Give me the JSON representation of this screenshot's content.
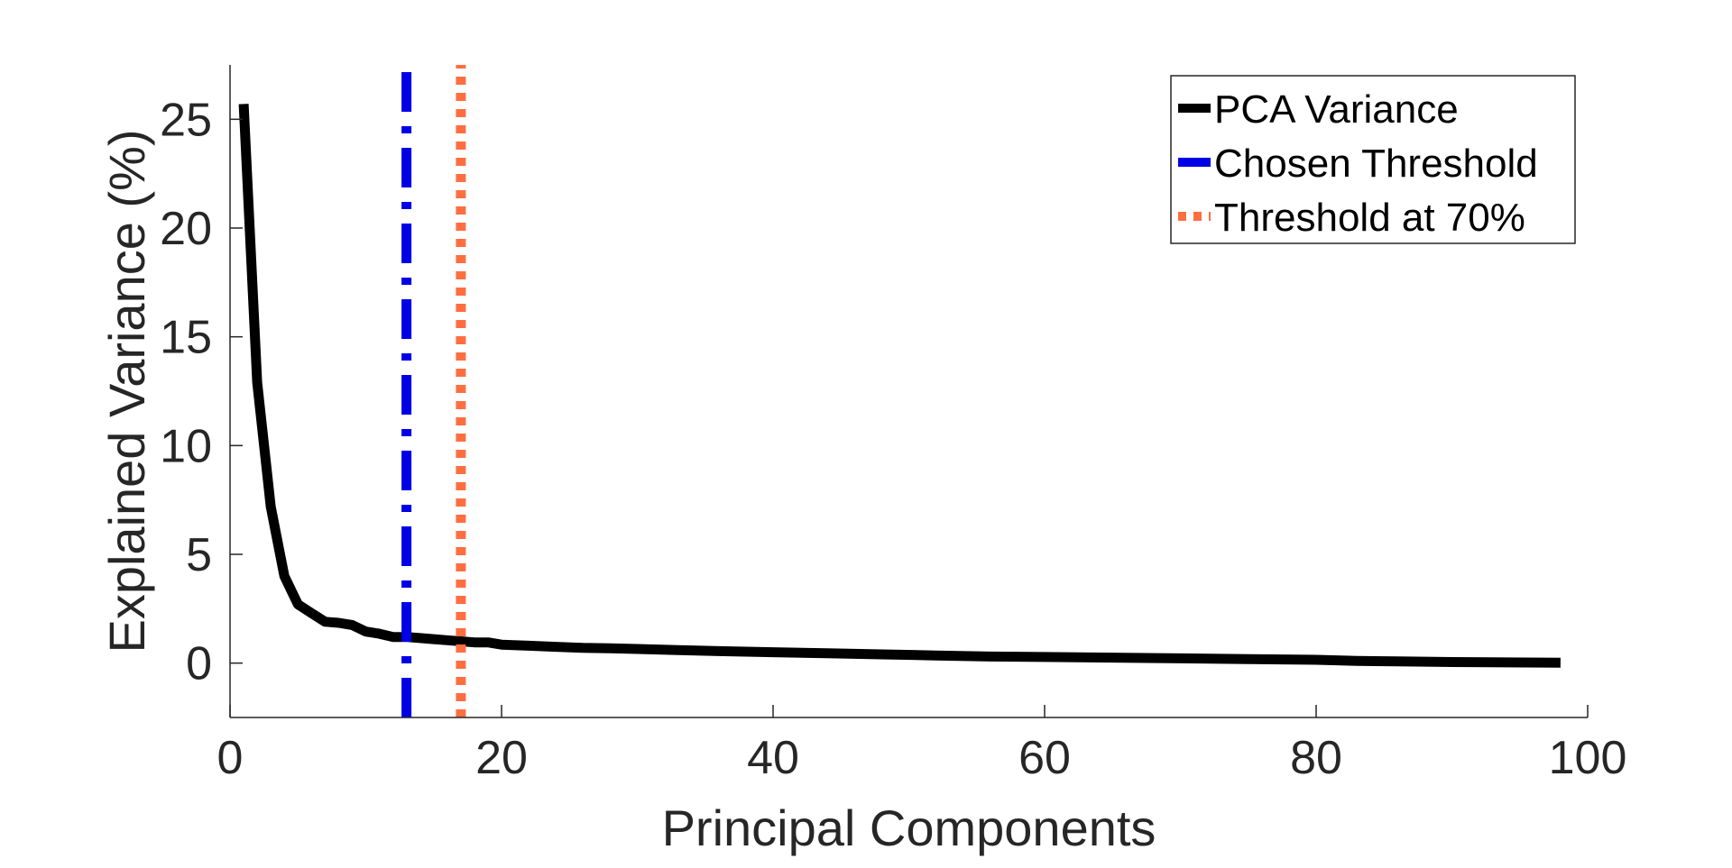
{
  "chart_data": {
    "type": "line",
    "title": "",
    "xlabel": "Principal Components",
    "ylabel": "Explained Variance (%)",
    "xlim": [
      0,
      100
    ],
    "ylim": [
      -2.5,
      27.5
    ],
    "xticks": [
      0,
      20,
      40,
      60,
      80,
      100
    ],
    "yticks": [
      0,
      5,
      10,
      15,
      20,
      25
    ],
    "grid": false,
    "legend_position": "top-right",
    "series": [
      {
        "name": "PCA Variance",
        "color": "#000000",
        "style": "solid",
        "x": [
          1,
          2,
          3,
          4,
          5,
          6,
          7,
          8,
          9,
          10,
          11,
          12,
          13,
          14,
          15,
          16,
          17,
          18,
          19,
          20,
          22,
          24,
          26,
          28,
          30,
          33,
          36,
          40,
          44,
          48,
          52,
          56,
          60,
          65,
          70,
          75,
          80,
          83,
          86,
          90,
          94,
          98
        ],
        "y": [
          25.7,
          12.9,
          7.2,
          4.0,
          2.7,
          2.3,
          1.9,
          1.85,
          1.75,
          1.45,
          1.35,
          1.2,
          1.2,
          1.15,
          1.1,
          1.05,
          1.0,
          0.95,
          0.95,
          0.85,
          0.8,
          0.75,
          0.7,
          0.68,
          0.65,
          0.6,
          0.55,
          0.5,
          0.45,
          0.4,
          0.35,
          0.3,
          0.28,
          0.25,
          0.22,
          0.18,
          0.15,
          0.1,
          0.08,
          0.05,
          0.03,
          0.02
        ]
      },
      {
        "name": "Chosen Threshold",
        "color": "#0000e6",
        "style": "dashdot",
        "x": [
          13,
          13
        ],
        "y": [
          -2.5,
          27.5
        ]
      },
      {
        "name": "Threshold at 70%",
        "color": "#ff6e40",
        "style": "dotted",
        "x": [
          17,
          17
        ],
        "y": [
          -2.5,
          27.5
        ]
      }
    ]
  }
}
